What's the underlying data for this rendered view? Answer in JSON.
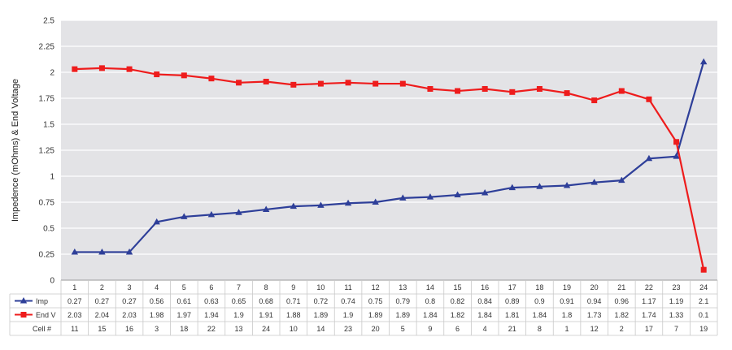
{
  "chart_data": {
    "type": "line",
    "ylabel": "Impedence (mOhms) & End Voltage",
    "ylim": [
      0,
      2.5
    ],
    "yticks": [
      "0",
      "0.25",
      "0.5",
      "0.75",
      "1",
      "1.25",
      "1.5",
      "1.75",
      "2",
      "2.25",
      "2.5"
    ],
    "categories": [
      "1",
      "2",
      "3",
      "4",
      "5",
      "6",
      "7",
      "8",
      "9",
      "10",
      "11",
      "12",
      "13",
      "14",
      "15",
      "16",
      "17",
      "18",
      "19",
      "20",
      "21",
      "22",
      "23",
      "24"
    ],
    "grid": true,
    "legend": "data-table-left",
    "series": [
      {
        "name": "Imp",
        "color": "#2e3f99",
        "marker": "triangle",
        "values": [
          0.27,
          0.27,
          0.27,
          0.56,
          0.61,
          0.63,
          0.65,
          0.68,
          0.71,
          0.72,
          0.74,
          0.75,
          0.79,
          0.8,
          0.82,
          0.84,
          0.89,
          0.9,
          0.91,
          0.94,
          0.96,
          1.17,
          1.19,
          2.1
        ],
        "labels": [
          "0.27",
          "0.27",
          "0.27",
          "0.56",
          "0.61",
          "0.63",
          "0.65",
          "0.68",
          "0.71",
          "0.72",
          "0.74",
          "0.75",
          "0.79",
          "0.8",
          "0.82",
          "0.84",
          "0.89",
          "0.9",
          "0.91",
          "0.94",
          "0.96",
          "1.17",
          "1.19",
          "2.1"
        ]
      },
      {
        "name": "End V",
        "color": "#ee1c1c",
        "marker": "square",
        "values": [
          2.03,
          2.04,
          2.03,
          1.98,
          1.97,
          1.94,
          1.9,
          1.91,
          1.88,
          1.89,
          1.9,
          1.89,
          1.89,
          1.84,
          1.82,
          1.84,
          1.81,
          1.84,
          1.8,
          1.73,
          1.82,
          1.74,
          1.33,
          0.1
        ],
        "labels": [
          "2.03",
          "2.04",
          "2.03",
          "1.98",
          "1.97",
          "1.94",
          "1.9",
          "1.91",
          "1.88",
          "1.89",
          "1.9",
          "1.89",
          "1.89",
          "1.84",
          "1.82",
          "1.84",
          "1.81",
          "1.84",
          "1.8",
          "1.73",
          "1.82",
          "1.74",
          "1.33",
          "0.1"
        ]
      }
    ],
    "table_rows": [
      {
        "name": "Cell #",
        "values": [
          "11",
          "15",
          "16",
          "3",
          "18",
          "22",
          "13",
          "24",
          "10",
          "14",
          "23",
          "20",
          "5",
          "9",
          "6",
          "4",
          "21",
          "8",
          "1",
          "12",
          "2",
          "17",
          "7",
          "19"
        ]
      }
    ]
  }
}
